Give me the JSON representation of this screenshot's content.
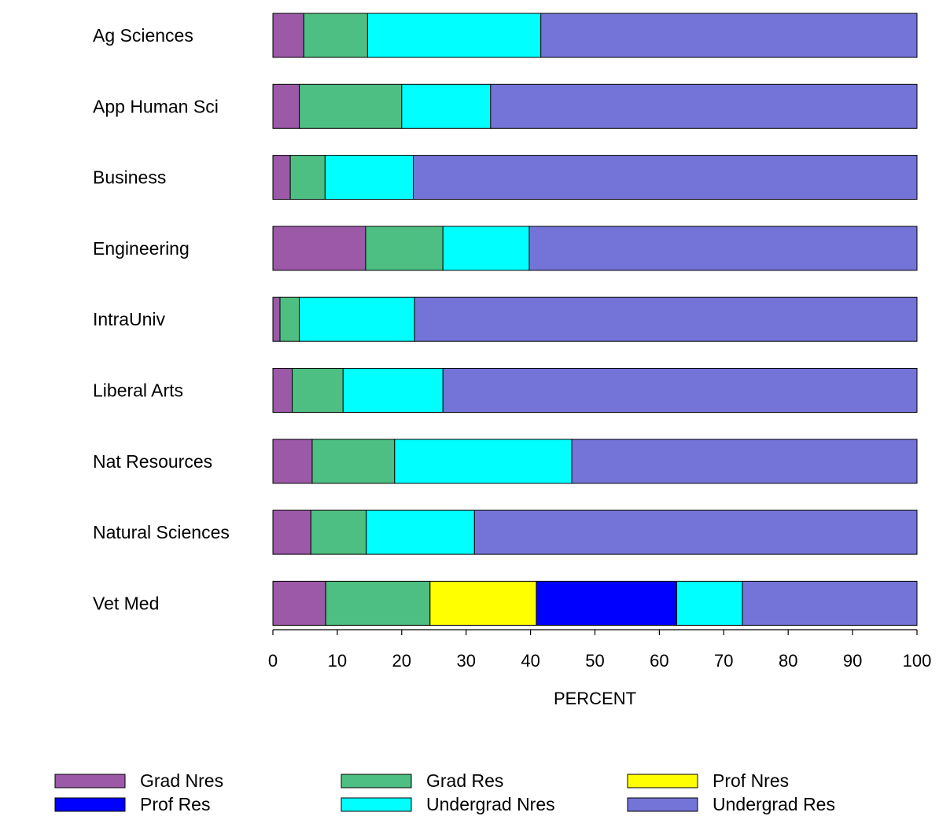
{
  "chart_data": {
    "type": "bar",
    "orientation": "horizontal",
    "stacked": true,
    "categories": [
      "Ag Sciences",
      "App Human Sci",
      "Business",
      "Engineering",
      "IntraUniv",
      "Liberal Arts",
      "Nat Resources",
      "Natural Sciences",
      "Vet Med"
    ],
    "series": [
      {
        "name": "Grad Nres",
        "color": "#9b59a8",
        "values": [
          4.8,
          4.1,
          2.7,
          14.4,
          1.1,
          3.0,
          6.1,
          5.9,
          8.2
        ]
      },
      {
        "name": "Grad Res",
        "color": "#4dbf82",
        "values": [
          9.9,
          15.9,
          5.4,
          12.0,
          3.0,
          7.9,
          12.8,
          8.6,
          16.2
        ]
      },
      {
        "name": "Prof Nres",
        "color": "#ffff00",
        "values": [
          0,
          0,
          0,
          0,
          0,
          0,
          0,
          0,
          16.5
        ]
      },
      {
        "name": "Prof Res",
        "color": "#0000ff",
        "values": [
          0,
          0,
          0,
          0,
          0,
          0,
          0,
          0,
          21.8
        ]
      },
      {
        "name": "Undergrad Nres",
        "color": "#00ffff",
        "values": [
          26.9,
          13.8,
          13.7,
          13.4,
          17.9,
          15.5,
          27.5,
          16.8,
          10.2
        ]
      },
      {
        "name": "Undergrad Res",
        "color": "#7474d8",
        "values": [
          58.4,
          66.2,
          78.2,
          60.2,
          78.0,
          73.6,
          53.6,
          68.7,
          27.1
        ]
      }
    ],
    "xlabel": "PERCENT",
    "ylabel": "",
    "xlim": [
      0,
      100
    ],
    "xticks": [
      "0",
      "10",
      "20",
      "30",
      "40",
      "50",
      "60",
      "70",
      "80",
      "90",
      "100"
    ],
    "legend": "bottom",
    "grid": false
  }
}
